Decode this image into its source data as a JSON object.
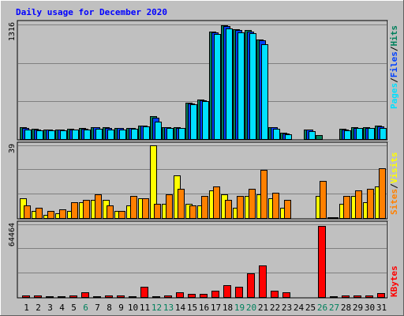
{
  "title": "Daily usage for December 2020",
  "colors": {
    "background": "#c0c0c0",
    "title": "#0000ff",
    "hits_fill": "#00805c",
    "files_fill": "#0040ff",
    "pages_fill": "#00e0ff",
    "visits_fill": "#ffff00",
    "sites_fill": "#ff8000",
    "kbytes_fill": "#ff0000",
    "weekend_label": "#00805c",
    "weekday_label": "#000000"
  },
  "right_labels": {
    "hits": "Hits",
    "files": "Files",
    "pages": "Pages",
    "visits": "Visits",
    "sites": "Sites",
    "kbytes": "KBytes",
    "separator": "/"
  },
  "chart_data": {
    "type": "bar",
    "title": "Daily usage for December 2020",
    "categories": [
      "1",
      "2",
      "3",
      "4",
      "5",
      "6",
      "7",
      "8",
      "9",
      "10",
      "11",
      "12",
      "13",
      "14",
      "15",
      "16",
      "17",
      "18",
      "19",
      "20",
      "21",
      "22",
      "23",
      "24",
      "25",
      "26",
      "27",
      "28",
      "29",
      "30",
      "31"
    ],
    "weekend_days": [
      "6",
      "12",
      "13",
      "19",
      "20",
      "26",
      "27"
    ],
    "panels": [
      {
        "name": "traffic",
        "ymax_label": "1316",
        "ymax": 1316,
        "grid": true,
        "series": [
          {
            "name": "Hits",
            "values": [
              140,
              125,
              118,
              118,
              125,
              130,
              145,
              140,
              138,
              138,
              165,
              265,
              145,
              140,
              425,
              455,
              1230,
              1300,
              1250,
              1240,
              1140,
              145,
              82,
              0,
              120,
              55,
              0,
              122,
              145,
              145,
              160
            ]
          },
          {
            "name": "Files",
            "values": [
              135,
              120,
              112,
              112,
              120,
              125,
              140,
              135,
              132,
              132,
              158,
              255,
              140,
              135,
              415,
              445,
              1220,
              1290,
              1240,
              1230,
              1130,
              140,
              75,
              0,
              112,
              0,
              0,
              112,
              138,
              138,
              150
            ]
          },
          {
            "name": "Pages",
            "values": [
              120,
              110,
              105,
              105,
              115,
              118,
              125,
              120,
              120,
              122,
              150,
              210,
              130,
              130,
              400,
              440,
              1200,
              1260,
              1220,
              1210,
              1080,
              125,
              65,
              0,
              95,
              0,
              0,
              105,
              130,
              130,
              135
            ]
          }
        ]
      },
      {
        "name": "visitors",
        "ymax_label": "39",
        "ymax": 39,
        "grid": true,
        "series": [
          {
            "name": "Visits",
            "values": [
              11,
              4,
              2,
              3,
              4,
              9,
              10,
              10,
              4,
              7,
              11,
              39,
              8,
              23,
              8,
              7,
              15,
              13,
              6,
              12,
              13,
              11,
              6,
              0,
              0,
              12,
              1,
              8,
              12,
              9,
              17
            ]
          },
          {
            "name": "Sites",
            "values": [
              7,
              6,
              4,
              5,
              9,
              10,
              13,
              7,
              4,
              12,
              11,
              8,
              13,
              16,
              7,
              12,
              17,
              10,
              12,
              16,
              26,
              14,
              10,
              0,
              0,
              20,
              1,
              12,
              15,
              16,
              27
            ]
          }
        ]
      },
      {
        "name": "kbytes",
        "ymax_label": "64464",
        "ymax": 64464,
        "grid": true,
        "series": [
          {
            "name": "KBytes",
            "values": [
              2200,
              1800,
              1600,
              1700,
              2100,
              4800,
              1700,
              1800,
              1800,
              1700,
              9800,
              1700,
              2100,
              5000,
              3500,
              3800,
              6500,
              11000,
              10000,
              21500,
              28500,
              6500,
              4800,
              0,
              0,
              63000,
              1500,
              2200,
              2300,
              2300,
              4500
            ]
          }
        ]
      }
    ]
  }
}
